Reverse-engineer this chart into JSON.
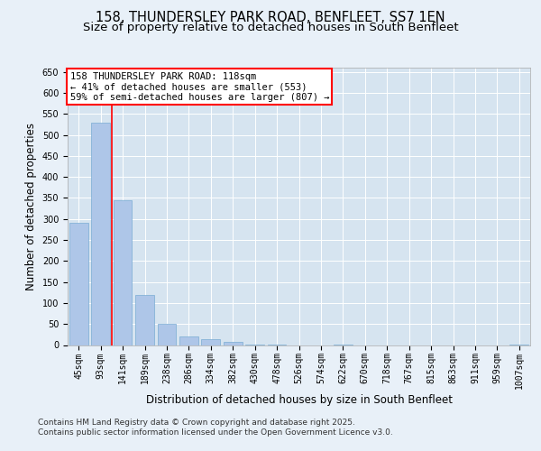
{
  "title1": "158, THUNDERSLEY PARK ROAD, BENFLEET, SS7 1EN",
  "title2": "Size of property relative to detached houses in South Benfleet",
  "xlabel": "Distribution of detached houses by size in South Benfleet",
  "ylabel": "Number of detached properties",
  "categories": [
    "45sqm",
    "93sqm",
    "141sqm",
    "189sqm",
    "238sqm",
    "286sqm",
    "334sqm",
    "382sqm",
    "430sqm",
    "478sqm",
    "526sqm",
    "574sqm",
    "622sqm",
    "670sqm",
    "718sqm",
    "767sqm",
    "815sqm",
    "863sqm",
    "911sqm",
    "959sqm",
    "1007sqm"
  ],
  "values": [
    290,
    530,
    345,
    120,
    50,
    20,
    15,
    8,
    2,
    1,
    0,
    0,
    1,
    0,
    0,
    0,
    0,
    0,
    0,
    0,
    1
  ],
  "bar_color": "#aec6e8",
  "bar_edge_color": "#7aacd4",
  "annotation_text_line1": "158 THUNDERSLEY PARK ROAD: 118sqm",
  "annotation_text_line2": "← 41% of detached houses are smaller (553)",
  "annotation_text_line3": "59% of semi-detached houses are larger (807) →",
  "vline_x": 1.5,
  "vline_color": "red",
  "ylim": [
    0,
    660
  ],
  "yticks": [
    0,
    50,
    100,
    150,
    200,
    250,
    300,
    350,
    400,
    450,
    500,
    550,
    600,
    650
  ],
  "bg_color": "#e8f0f8",
  "plot_bg_color": "#d6e4f0",
  "footer_line1": "Contains HM Land Registry data © Crown copyright and database right 2025.",
  "footer_line2": "Contains public sector information licensed under the Open Government Licence v3.0.",
  "title_fontsize": 10.5,
  "subtitle_fontsize": 9.5,
  "tick_fontsize": 7,
  "label_fontsize": 8.5,
  "annotation_fontsize": 7.5,
  "footer_fontsize": 6.5
}
